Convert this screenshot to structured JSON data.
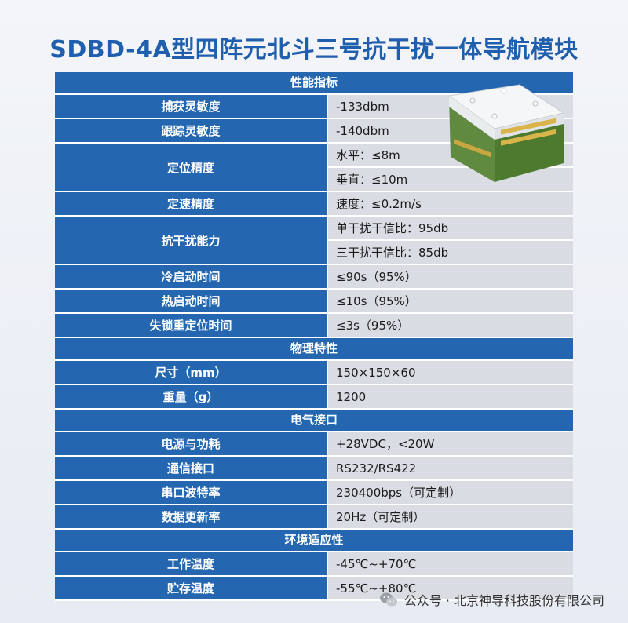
{
  "title": "SDBD-4A型四阵元北斗三号抗干扰一体导航模块",
  "sections": [
    {
      "heading": "性能指标",
      "rows": [
        {
          "label": "捕获灵敏度",
          "values": [
            "-133dbm"
          ]
        },
        {
          "label": "跟踪灵敏度",
          "values": [
            "-140dbm"
          ]
        },
        {
          "label": "定位精度",
          "values": [
            "水平：≤8m",
            "垂直：≤10m"
          ]
        },
        {
          "label": "定速精度",
          "values": [
            "速度：≤0.2m/s"
          ]
        },
        {
          "label": "抗干扰能力",
          "values": [
            "单干扰干信比：95db",
            "三干扰干信比：85db"
          ]
        },
        {
          "label": "冷启动时间",
          "values": [
            "≤90s（95%）"
          ]
        },
        {
          "label": "热启动时间",
          "values": [
            "≤10s（95%）"
          ]
        },
        {
          "label": "失锁重定位时间",
          "values": [
            "≤3s（95%）"
          ]
        }
      ]
    },
    {
      "heading": "物理特性",
      "rows": [
        {
          "label": "尺寸（mm）",
          "values": [
            "150×150×60"
          ]
        },
        {
          "label": "重量（g）",
          "values": [
            "1200"
          ]
        }
      ]
    },
    {
      "heading": "电气接口",
      "rows": [
        {
          "label": "电源与功耗",
          "values": [
            "+28VDC，<20W"
          ]
        },
        {
          "label": "通信接口",
          "values": [
            "RS232/RS422"
          ]
        },
        {
          "label": "串口波特率",
          "values": [
            "230400bps（可定制）"
          ]
        },
        {
          "label": "数据更新率",
          "values": [
            "20Hz（可定制）"
          ]
        }
      ]
    },
    {
      "heading": "环境适应性",
      "rows": [
        {
          "label": "工作温度",
          "values": [
            "-45℃~+70℃"
          ]
        },
        {
          "label": "贮存温度",
          "values": [
            "-55℃~+80℃"
          ]
        }
      ]
    }
  ],
  "footer": {
    "text": "公众号 · 北京神导科技股份有限公司",
    "icon": "wechat-icon"
  },
  "colors": {
    "title": "#1f5fae",
    "header_bg": "#2467b0",
    "value_bg": "#d9dde3"
  }
}
